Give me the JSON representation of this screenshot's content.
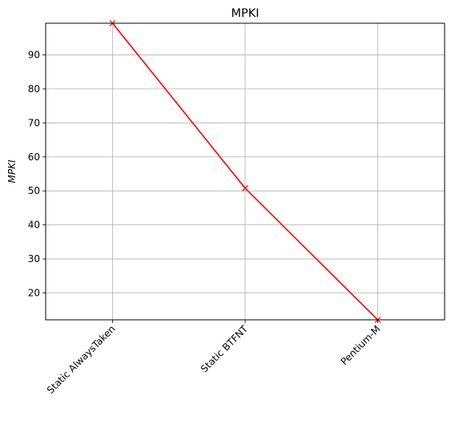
{
  "chart_data": {
    "type": "line",
    "title": "MPKI",
    "xlabel": "",
    "ylabel": "MPKI",
    "categories": [
      "Static AlwaysTaken",
      "Static BTFNT",
      "Pentium-M"
    ],
    "series": [
      {
        "values": [
          99.3,
          50.8,
          12.1
        ],
        "color": "#ff0000",
        "marker": "x"
      }
    ],
    "ylim": [
      12.1,
      99.3
    ],
    "yticks": [
      20,
      30,
      40,
      50,
      60,
      70,
      80,
      90
    ],
    "grid": true,
    "x_tick_rotation": "45 degrees"
  }
}
